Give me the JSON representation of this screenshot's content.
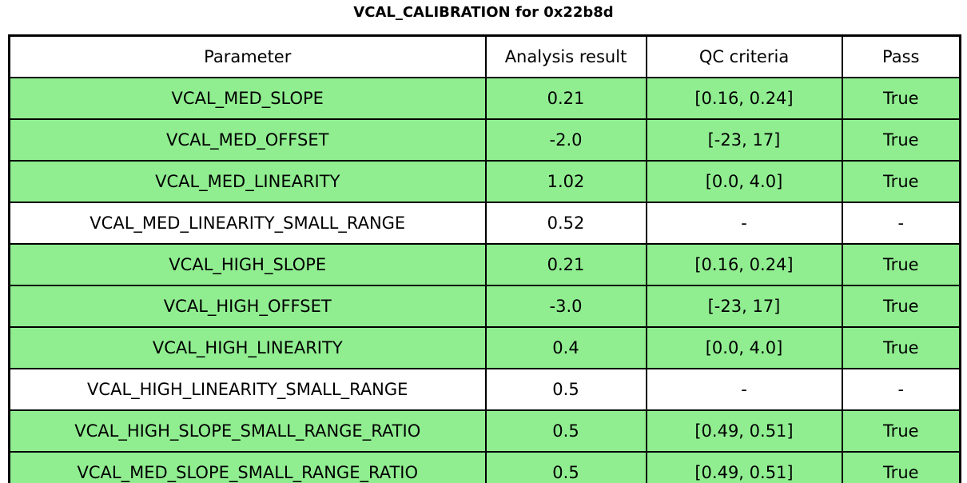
{
  "title": "VCAL_CALIBRATION for 0x22b8d",
  "colors": {
    "pass_row_bg": "#90ee90",
    "neutral_row_bg": "#ffffff",
    "border": "#000000",
    "text": "#000000"
  },
  "table": {
    "headers": [
      "Parameter",
      "Analysis result",
      "QC criteria",
      "Pass"
    ],
    "rows": [
      {
        "parameter": "VCAL_MED_SLOPE",
        "analysis_result": "0.21",
        "qc_criteria": "[0.16, 0.24]",
        "pass": "True",
        "highlight": true
      },
      {
        "parameter": "VCAL_MED_OFFSET",
        "analysis_result": "-2.0",
        "qc_criteria": "[-23, 17]",
        "pass": "True",
        "highlight": true
      },
      {
        "parameter": "VCAL_MED_LINEARITY",
        "analysis_result": "1.02",
        "qc_criteria": "[0.0, 4.0]",
        "pass": "True",
        "highlight": true
      },
      {
        "parameter": "VCAL_MED_LINEARITY_SMALL_RANGE",
        "analysis_result": "0.52",
        "qc_criteria": "-",
        "pass": "-",
        "highlight": false
      },
      {
        "parameter": "VCAL_HIGH_SLOPE",
        "analysis_result": "0.21",
        "qc_criteria": "[0.16, 0.24]",
        "pass": "True",
        "highlight": true
      },
      {
        "parameter": "VCAL_HIGH_OFFSET",
        "analysis_result": "-3.0",
        "qc_criteria": "[-23, 17]",
        "pass": "True",
        "highlight": true
      },
      {
        "parameter": "VCAL_HIGH_LINEARITY",
        "analysis_result": "0.4",
        "qc_criteria": "[0.0, 4.0]",
        "pass": "True",
        "highlight": true
      },
      {
        "parameter": "VCAL_HIGH_LINEARITY_SMALL_RANGE",
        "analysis_result": "0.5",
        "qc_criteria": "-",
        "pass": "-",
        "highlight": false
      },
      {
        "parameter": "VCAL_HIGH_SLOPE_SMALL_RANGE_RATIO",
        "analysis_result": "0.5",
        "qc_criteria": "[0.49, 0.51]",
        "pass": "True",
        "highlight": true
      },
      {
        "parameter": "VCAL_MED_SLOPE_SMALL_RANGE_RATIO",
        "analysis_result": "0.5",
        "qc_criteria": "[0.49, 0.51]",
        "pass": "True",
        "highlight": true
      }
    ]
  },
  "chart_data": {
    "type": "table",
    "title": "VCAL_CALIBRATION for 0x22b8d",
    "columns": [
      "Parameter",
      "Analysis result",
      "QC criteria",
      "Pass"
    ],
    "rows": [
      [
        "VCAL_MED_SLOPE",
        "0.21",
        "[0.16, 0.24]",
        "True"
      ],
      [
        "VCAL_MED_OFFSET",
        "-2.0",
        "[-23, 17]",
        "True"
      ],
      [
        "VCAL_MED_LINEARITY",
        "1.02",
        "[0.0, 4.0]",
        "True"
      ],
      [
        "VCAL_MED_LINEARITY_SMALL_RANGE",
        "0.52",
        "-",
        "-"
      ],
      [
        "VCAL_HIGH_SLOPE",
        "0.21",
        "[0.16, 0.24]",
        "True"
      ],
      [
        "VCAL_HIGH_OFFSET",
        "-3.0",
        "[-23, 17]",
        "True"
      ],
      [
        "VCAL_HIGH_LINEARITY",
        "0.4",
        "[0.0, 4.0]",
        "True"
      ],
      [
        "VCAL_HIGH_LINEARITY_SMALL_RANGE",
        "0.5",
        "-",
        "-"
      ],
      [
        "VCAL_HIGH_SLOPE_SMALL_RANGE_RATIO",
        "0.5",
        "[0.49, 0.51]",
        "True"
      ],
      [
        "VCAL_MED_SLOPE_SMALL_RANGE_RATIO",
        "0.5",
        "[0.49, 0.51]",
        "True"
      ]
    ],
    "row_pass_flags": [
      true,
      true,
      true,
      false,
      true,
      true,
      true,
      false,
      true,
      true
    ],
    "layout": {
      "grid": false,
      "highlight_color": "#90ee90"
    }
  }
}
